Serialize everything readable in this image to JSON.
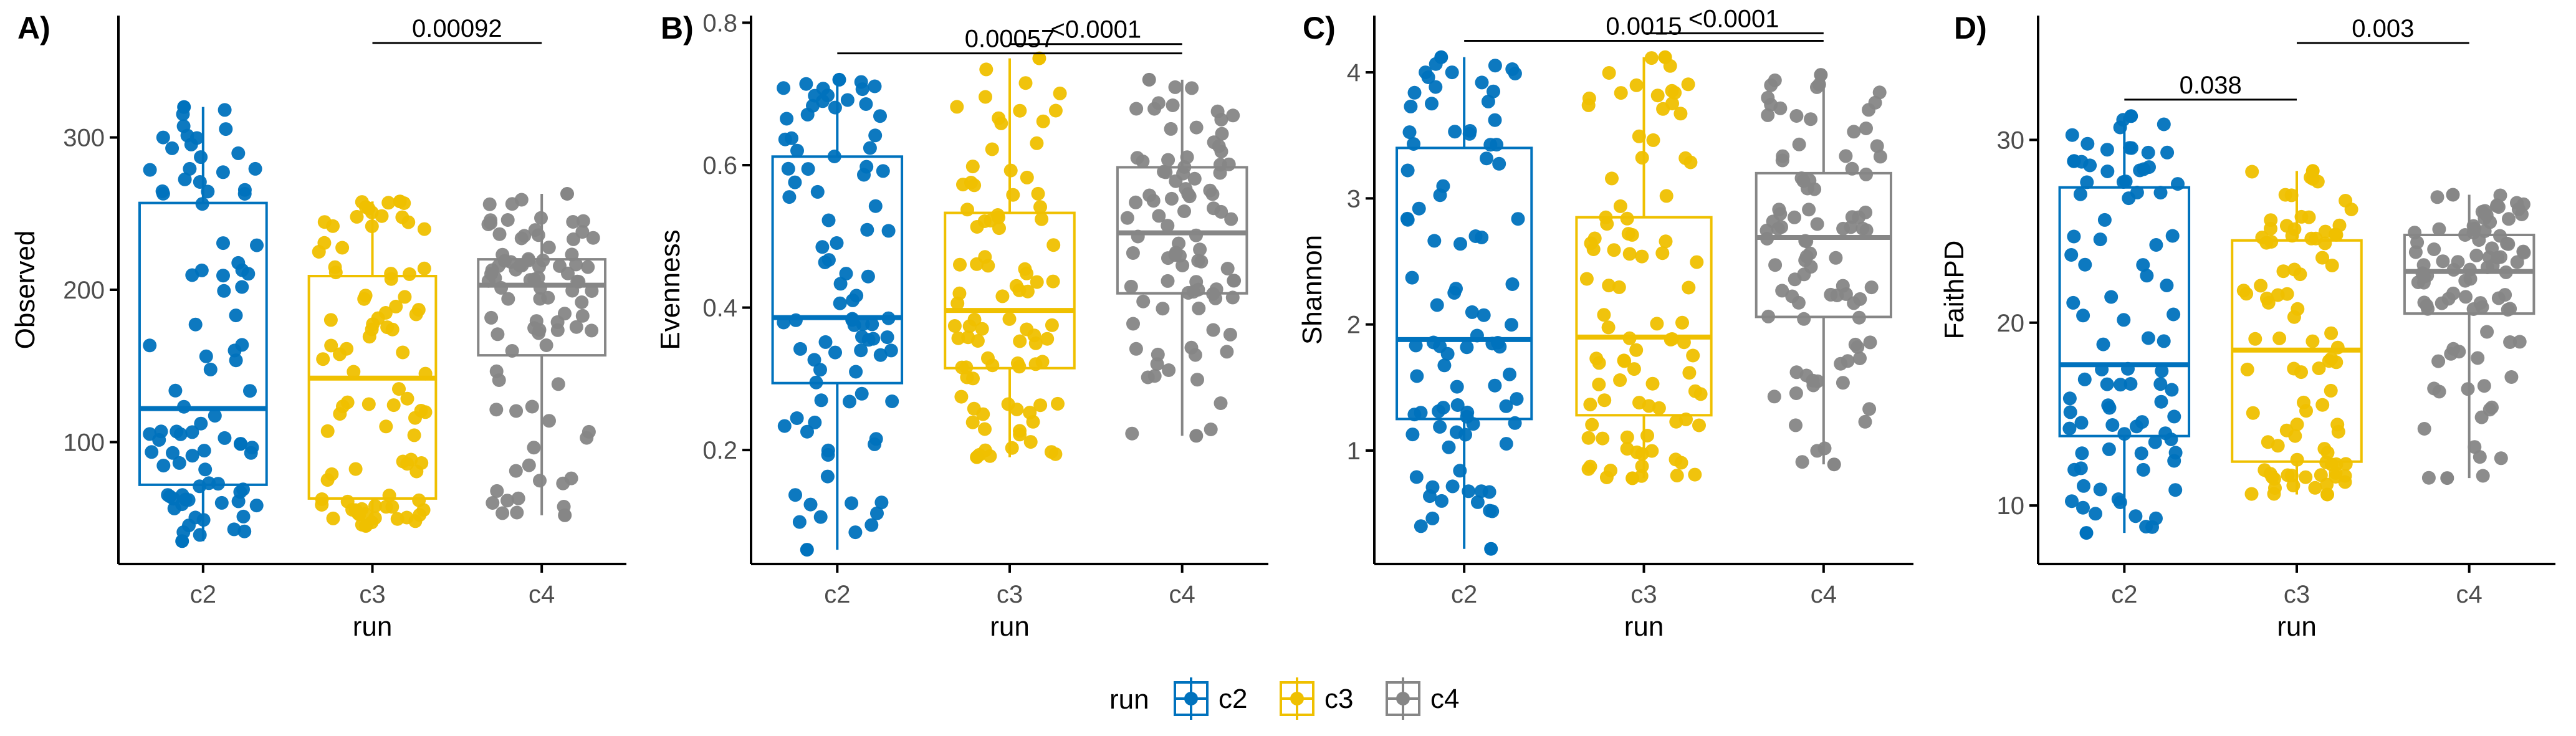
{
  "chart_data": [
    {
      "type": "box",
      "panel_tag": "A)",
      "xlabel": "run",
      "ylabel": "Observed",
      "categories": [
        "c2",
        "c3",
        "c4"
      ],
      "ylim": [
        20,
        380
      ],
      "yticks": [
        100,
        200,
        300
      ],
      "boxes": [
        {
          "name": "c2",
          "whisker_low": 35,
          "q1": 72,
          "median": 122,
          "q3": 257,
          "whisker_high": 320
        },
        {
          "name": "c3",
          "whisker_low": 45,
          "q1": 63,
          "median": 142,
          "q3": 209,
          "whisker_high": 258
        },
        {
          "name": "c4",
          "whisker_low": 52,
          "q1": 157,
          "median": 203,
          "q3": 220,
          "whisker_high": 263
        }
      ],
      "comparisons": [
        {
          "groups": [
            "c3",
            "c4"
          ],
          "p": "0.00092",
          "y": 362
        }
      ]
    },
    {
      "type": "box",
      "panel_tag": "B)",
      "xlabel": "run",
      "ylabel": "Evenness",
      "categories": [
        "c2",
        "c3",
        "c4"
      ],
      "ylim": [
        0.04,
        0.81
      ],
      "yticks": [
        0.2,
        0.4,
        0.6,
        0.8
      ],
      "ytick_labels": [
        "0.2",
        "0.4",
        "0.6",
        "0.8"
      ],
      "boxes": [
        {
          "name": "c2",
          "whisker_low": 0.06,
          "q1": 0.294,
          "median": 0.386,
          "q3": 0.612,
          "whisker_high": 0.72
        },
        {
          "name": "c3",
          "whisker_low": 0.19,
          "q1": 0.315,
          "median": 0.396,
          "q3": 0.533,
          "whisker_high": 0.75
        },
        {
          "name": "c4",
          "whisker_low": 0.22,
          "q1": 0.42,
          "median": 0.505,
          "q3": 0.597,
          "whisker_high": 0.72
        }
      ],
      "comparisons": [
        {
          "groups": [
            "c3",
            "c4"
          ],
          "p": "<0.0001",
          "y": 0.77
        },
        {
          "groups": [
            "c2",
            "c4"
          ],
          "p": "0.00057",
          "y": 0.757
        }
      ]
    },
    {
      "type": "box",
      "panel_tag": "C)",
      "xlabel": "run",
      "ylabel": "Shannon",
      "categories": [
        "c2",
        "c3",
        "c4"
      ],
      "ylim": [
        0.1,
        4.45
      ],
      "yticks": [
        1,
        2,
        3,
        4
      ],
      "boxes": [
        {
          "name": "c2",
          "whisker_low": 0.22,
          "q1": 1.25,
          "median": 1.88,
          "q3": 3.4,
          "whisker_high": 4.12
        },
        {
          "name": "c3",
          "whisker_low": 0.78,
          "q1": 1.28,
          "median": 1.9,
          "q3": 2.85,
          "whisker_high": 4.12
        },
        {
          "name": "c4",
          "whisker_low": 0.89,
          "q1": 2.06,
          "median": 2.69,
          "q3": 3.2,
          "whisker_high": 3.98
        }
      ],
      "comparisons": [
        {
          "groups": [
            "c3",
            "c4"
          ],
          "p": "<0.0001",
          "y": 4.31
        },
        {
          "groups": [
            "c2",
            "c4"
          ],
          "p": "0.0015",
          "y": 4.25
        }
      ]
    },
    {
      "type": "box",
      "panel_tag": "D)",
      "xlabel": "run",
      "ylabel": "FaithPD",
      "categories": [
        "c2",
        "c3",
        "c4"
      ],
      "ylim": [
        6.8,
        36.8
      ],
      "yticks": [
        10,
        20,
        30
      ],
      "boxes": [
        {
          "name": "c2",
          "whisker_low": 8.5,
          "q1": 13.8,
          "median": 17.7,
          "q3": 27.4,
          "whisker_high": 31.3
        },
        {
          "name": "c3",
          "whisker_low": 10.6,
          "q1": 12.4,
          "median": 18.5,
          "q3": 24.5,
          "whisker_high": 28.3
        },
        {
          "name": "c4",
          "whisker_low": 11.5,
          "q1": 20.5,
          "median": 22.8,
          "q3": 24.8,
          "whisker_high": 27
        }
      ],
      "comparisons": [
        {
          "groups": [
            "c2",
            "c3"
          ],
          "p": "0.038",
          "y": 32.2
        },
        {
          "groups": [
            "c3",
            "c4"
          ],
          "p": "0.003",
          "y": 35.3
        }
      ]
    }
  ],
  "legend": {
    "title": "run",
    "position": "bottom",
    "items": [
      {
        "label": "c2",
        "color": "#0072BD"
      },
      {
        "label": "c3",
        "color": "#EFC000"
      },
      {
        "label": "c4",
        "color": "#868686"
      }
    ]
  },
  "colors": {
    "c2": "#0072BD",
    "c3": "#EFC000",
    "c4": "#868686"
  }
}
